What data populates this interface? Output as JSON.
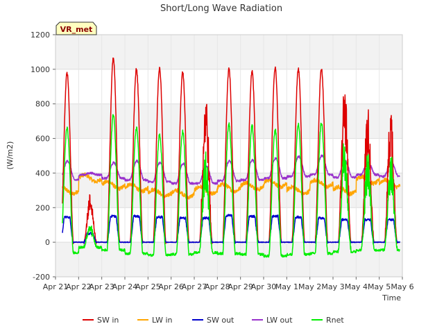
{
  "chart_data": {
    "type": "line",
    "title": "Short/Long Wave Radiation",
    "xlabel": "Time",
    "ylabel": "(W/m2)",
    "ylim": [
      -200,
      1200
    ],
    "yticks": [
      -200,
      0,
      200,
      400,
      600,
      800,
      1000,
      1200
    ],
    "xlim": [
      0,
      15
    ],
    "xtick_labels": [
      "Apr 21",
      "Apr 22",
      "Apr 23",
      "Apr 24",
      "Apr 25",
      "Apr 26",
      "Apr 27",
      "Apr 28",
      "Apr 29",
      "Apr 30",
      "May 1",
      "May 2",
      "May 3",
      "May 4",
      "May 5",
      "May 6"
    ],
    "grid": true,
    "legend": "bottom",
    "badge": "VR_met",
    "data_days": [
      0.3,
      14.9
    ],
    "series": [
      {
        "name": "SW in",
        "color": "#dd0000",
        "daily_peak": [
          980,
          280,
          1060,
          1000,
          1005,
          980,
          900,
          1000,
          990,
          1010,
          1000,
          1005,
          935,
          800
        ]
      },
      {
        "name": "LW in",
        "color": "#ffa500",
        "daily_level": [
          300,
          370,
          330,
          315,
          285,
          280,
          300,
          315,
          325,
          340,
          300,
          340,
          300,
          360,
          340
        ]
      },
      {
        "name": "SW out",
        "color": "#0000cc",
        "daily_peak": [
          145,
          50,
          150,
          150,
          145,
          140,
          140,
          155,
          150,
          150,
          145,
          140,
          130,
          130
        ]
      },
      {
        "name": "LW out",
        "color": "#9932cc",
        "daily_level": [
          360,
          390,
          370,
          360,
          350,
          340,
          340,
          355,
          360,
          370,
          380,
          390,
          375,
          390,
          380
        ],
        "daily_peak": [
          470,
          400,
          460,
          470,
          460,
          455,
          440,
          470,
          475,
          485,
          495,
          500,
          470,
          460
        ]
      },
      {
        "name": "Rnet",
        "color": "#00ee00",
        "daily_peak": [
          660,
          100,
          740,
          660,
          620,
          640,
          540,
          685,
          670,
          650,
          680,
          690,
          650,
          530
        ],
        "night_level": [
          -60,
          -30,
          -45,
          -65,
          -75,
          -70,
          -60,
          -65,
          -70,
          -80,
          -70,
          -65,
          -55,
          -45,
          -45
        ]
      }
    ]
  }
}
